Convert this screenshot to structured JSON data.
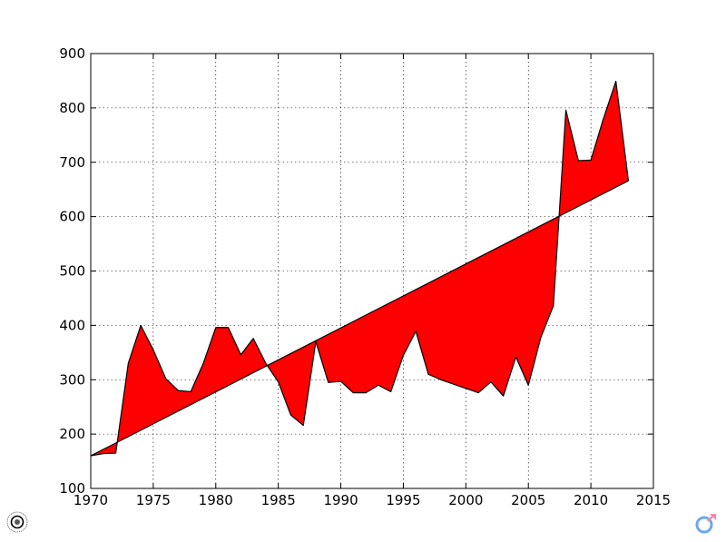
{
  "chart_data": {
    "type": "area",
    "title": "",
    "xlabel": "",
    "ylabel": "",
    "xlim": [
      1970,
      2015
    ],
    "ylim": [
      100,
      900
    ],
    "xticks": [
      1970,
      1975,
      1980,
      1985,
      1990,
      1995,
      2000,
      2005,
      2010,
      2015
    ],
    "yticks": [
      100,
      200,
      300,
      400,
      500,
      600,
      700,
      800,
      900
    ],
    "grid": true,
    "fill_color": "#ff0000",
    "line_color": "#000000",
    "series": [
      {
        "x": [
          1970,
          1971,
          1972,
          1973,
          1974,
          1975,
          1976,
          1977,
          1978,
          1979,
          1980,
          1981,
          1982,
          1983,
          1984,
          1985,
          1986,
          1987,
          1988,
          1989,
          1990,
          1991,
          1992,
          1993,
          1994,
          1995,
          1996,
          1997,
          1998,
          1999,
          2000,
          2001,
          2002,
          2003,
          2004,
          2005,
          2006,
          2007,
          2008,
          2009,
          2010,
          2011,
          2012,
          2013
        ],
        "values": [
          160,
          164,
          165,
          330,
          400,
          355,
          302,
          280,
          278,
          330,
          396,
          396,
          346,
          376,
          330,
          296,
          235,
          216,
          370,
          295,
          297,
          276,
          276,
          290,
          278,
          345,
          389,
          310,
          300,
          292,
          284,
          276,
          296,
          270,
          342,
          290,
          378,
          436,
          796,
          703,
          704,
          780,
          849,
          666
        ]
      },
      {
        "x": [
          1970,
          2013
        ],
        "values": [
          160,
          666
        ]
      }
    ]
  }
}
